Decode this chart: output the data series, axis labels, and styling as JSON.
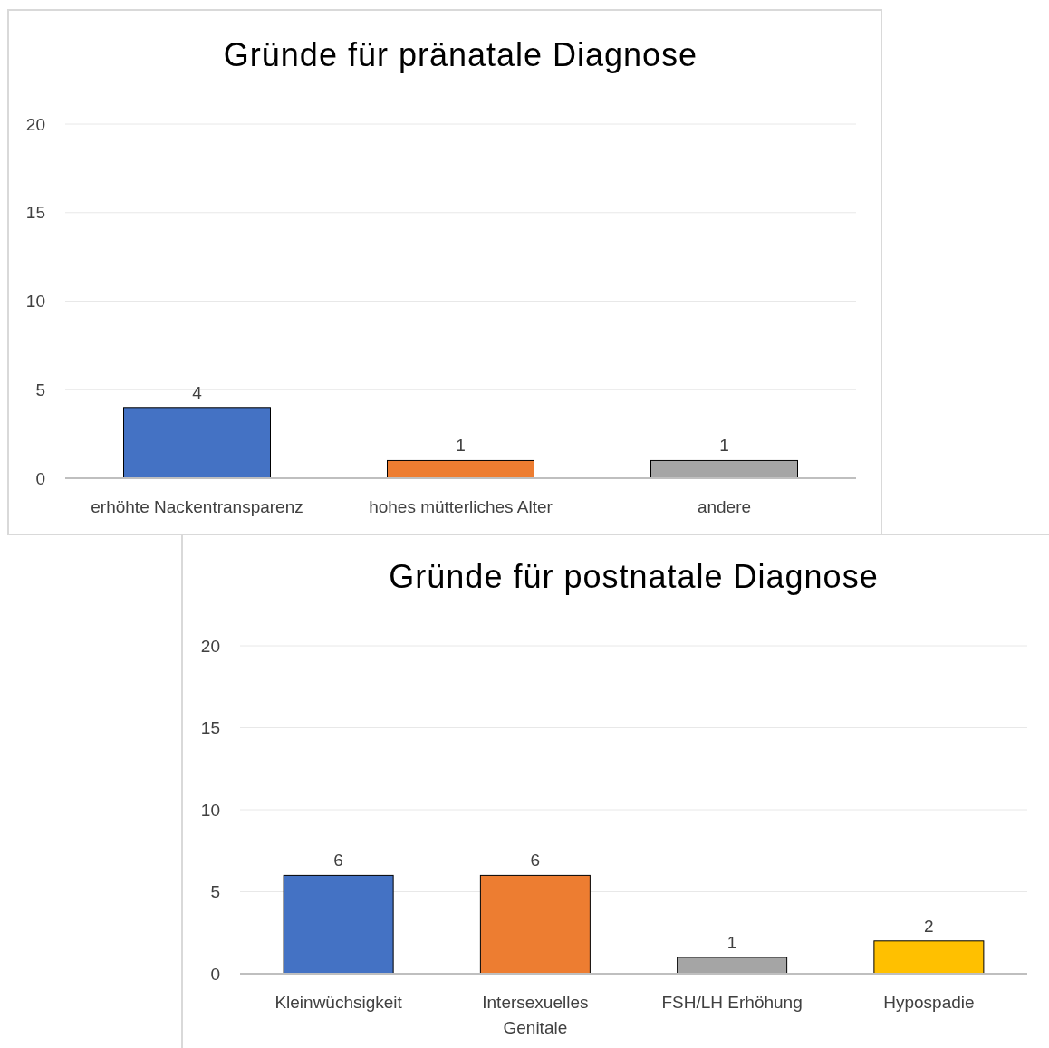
{
  "chart_data": [
    {
      "type": "bar",
      "title": "Gründe für pränatale Diagnose",
      "categories": [
        "erhöhte Nackentransparenz",
        "hohes mütterliches Alter",
        "andere"
      ],
      "values": [
        4,
        1,
        1
      ],
      "colors": [
        "#4472c4",
        "#ed7d31",
        "#a5a5a5"
      ],
      "ylim": [
        0,
        20
      ],
      "yticks": [
        0,
        5,
        10,
        15,
        20
      ],
      "grid": "y",
      "data_labels": true
    },
    {
      "type": "bar",
      "title": "Gründe für postnatale Diagnose",
      "categories": [
        "Kleinwüchsigkeit",
        "Intersexuelles Genitale",
        "FSH/LH Erhöhung",
        "Hypospadie"
      ],
      "values": [
        6,
        6,
        1,
        2
      ],
      "colors": [
        "#4472c4",
        "#ed7d31",
        "#a5a5a5",
        "#ffc000"
      ],
      "ylim": [
        0,
        20
      ],
      "yticks": [
        0,
        5,
        10,
        15,
        20
      ],
      "grid": "y",
      "data_labels": true
    }
  ]
}
